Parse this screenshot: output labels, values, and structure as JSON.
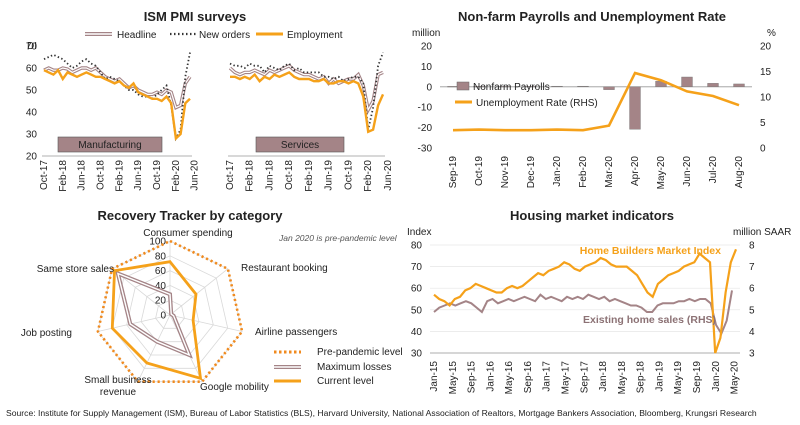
{
  "colors": {
    "orange": "#f5a11a",
    "brown": "#a48487",
    "black": "#333333",
    "grid": "#d9d9d9",
    "axis": "#999999"
  },
  "source": "Source: Institute for Supply Management (ISM), Bureau of Labor Statistics (BLS), Harvard University, National Association of Realtors, Mortgage Bankers Association, Bloomberg, Krungsri Research",
  "chart_data": [
    {
      "type": "line",
      "title": "ISM PMI surveys",
      "ylabel": "DI",
      "ylim": [
        20,
        70
      ],
      "y_ticks": [
        "70",
        "60",
        "50",
        "40",
        "30",
        "20"
      ],
      "legend": [
        "Headline",
        "New orders",
        "Employment"
      ],
      "legend_position": "top",
      "x_ticks": [
        "Oct-17",
        "Feb-18",
        "Jun-18",
        "Oct-18",
        "Feb-19",
        "Jun-19",
        "Oct-19",
        "Feb-20",
        "Jun-20"
      ],
      "panels": [
        {
          "name": "Manufacturing",
          "series": [
            {
              "name": "Headline",
              "values": [
                59,
                60,
                59,
                59,
                60,
                59.5,
                58,
                59,
                60,
                60,
                59,
                60,
                58,
                56,
                55,
                54,
                55,
                53,
                51,
                52,
                50,
                49,
                48,
                48,
                49,
                48,
                50,
                49,
                42,
                43,
                53,
                56
              ]
            },
            {
              "name": "New orders",
              "values": [
                64,
                65,
                66,
                65,
                64,
                62,
                60,
                61,
                63,
                64,
                62,
                61,
                58,
                55,
                56,
                55,
                54,
                52,
                50,
                50,
                48,
                47,
                47,
                46,
                48,
                50,
                52,
                43,
                28,
                32,
                56,
                67
              ]
            },
            {
              "name": "Employment",
              "values": [
                59,
                58,
                57,
                59,
                55,
                58,
                57,
                56,
                57,
                58,
                57,
                56,
                56,
                55,
                54,
                53,
                54,
                52,
                51,
                53,
                49,
                48,
                47,
                46,
                46,
                45,
                47,
                44,
                28,
                30,
                44,
                46
              ]
            }
          ]
        },
        {
          "name": "Services",
          "series": [
            {
              "name": "Headline",
              "values": [
                60,
                58,
                57,
                58,
                58,
                59,
                58,
                57,
                59,
                58,
                59,
                60,
                61,
                59,
                58,
                57,
                57,
                56,
                55,
                56,
                53,
                55,
                53,
                54,
                55,
                55,
                57,
                52,
                41,
                45,
                57,
                58
              ]
            },
            {
              "name": "New orders",
              "values": [
                62,
                61,
                61,
                60,
                62,
                61,
                61,
                58,
                61,
                60,
                59,
                61,
                62,
                59,
                60,
                58,
                58,
                58,
                58,
                56,
                56,
                55,
                56,
                54,
                55,
                56,
                56,
                53,
                32,
                42,
                61,
                67
              ]
            },
            {
              "name": "Employment",
              "values": [
                56,
                56,
                55,
                56,
                55,
                57,
                54,
                56,
                55,
                57,
                56,
                57,
                58,
                56,
                55,
                55,
                55,
                54,
                54,
                55,
                53,
                53,
                54,
                54,
                53,
                54,
                53,
                47,
                31,
                32,
                43,
                48
              ]
            }
          ]
        }
      ]
    },
    {
      "type": "bar",
      "title": "Non-farm Payrolls and Unemployment Rate",
      "ylabel": "million",
      "ylabel_right": "%",
      "ylim": [
        -30,
        20
      ],
      "ylim_right": [
        0,
        20
      ],
      "y_ticks": [
        "20",
        "10",
        "0",
        "-10",
        "-20",
        "-30"
      ],
      "y_ticks_right": [
        "20",
        "15",
        "10",
        "5",
        "0"
      ],
      "categories": [
        "Sep-19",
        "Oct-19",
        "Nov-19",
        "Dec-19",
        "Jan-20",
        "Feb-20",
        "Mar-20",
        "Apr-20",
        "May-20",
        "Jun-20",
        "Jul-20",
        "Aug-20"
      ],
      "series": [
        {
          "name": "Nonfarm Payrolls",
          "values": [
            0.2,
            0.2,
            0.2,
            0.2,
            0.3,
            0.3,
            -1.4,
            -20.8,
            2.7,
            4.8,
            1.7,
            1.4
          ]
        },
        {
          "name": "Unemployment Rate (RHS)",
          "values": [
            3.5,
            3.6,
            3.5,
            3.5,
            3.6,
            3.5,
            4.4,
            14.7,
            13.3,
            11.1,
            10.2,
            8.4
          ]
        }
      ]
    },
    {
      "type": "radar",
      "title": "Recovery Tracker by category",
      "annotation": "Jan 2020 is pre-pandemic level",
      "r_ticks": [
        "100",
        "80",
        "60",
        "40",
        "20",
        "0"
      ],
      "categories": [
        "Consumer spending",
        "Restaurant booking",
        "Airline passengers",
        "Google mobility",
        "Small business revenue",
        "Job posting",
        "Same store sales"
      ],
      "series": [
        {
          "name": "Pre-pandemic level",
          "values": [
            100,
            100,
            100,
            100,
            100,
            100,
            100
          ]
        },
        {
          "name": "Maximum losses",
          "values": [
            28,
            2,
            5,
            60,
            40,
            55,
            90
          ]
        },
        {
          "name": "Current level",
          "values": [
            72,
            45,
            32,
            95,
            72,
            80,
            96
          ]
        }
      ]
    },
    {
      "type": "line",
      "title": "Housing market indicators",
      "ylabel": "Index",
      "ylabel_right": "million SAAR",
      "ylim": [
        30,
        80
      ],
      "ylim_right": [
        3,
        8
      ],
      "y_ticks": [
        "80",
        "70",
        "60",
        "50",
        "40",
        "30"
      ],
      "y_ticks_right": [
        "8",
        "7",
        "6",
        "5",
        "4",
        "3"
      ],
      "x_ticks": [
        "Jan-15",
        "May-15",
        "Sep-15",
        "Jan-16",
        "May-16",
        "Sep-16",
        "Jan-17",
        "May-17",
        "Sep-17",
        "Jan-18",
        "May-18",
        "Sep-18",
        "Jan-19",
        "May-19",
        "Sep-19",
        "Jan-20",
        "May-20"
      ],
      "series": [
        {
          "name": "Home Builders Market Index",
          "values": [
            57,
            55,
            54,
            52,
            55,
            56,
            59,
            60,
            62,
            61,
            60,
            59,
            58,
            58,
            60,
            61,
            60,
            61,
            63,
            65,
            67,
            66,
            68,
            69,
            70,
            72,
            71,
            69,
            68,
            70,
            71,
            72,
            74,
            73,
            71,
            70,
            70,
            70,
            68,
            66,
            62,
            58,
            56,
            62,
            64,
            66,
            67,
            68,
            70,
            71,
            72,
            76,
            74,
            72,
            30,
            37,
            58,
            72,
            78
          ]
        },
        {
          "name": "Existing home sales (RHS)",
          "values": [
            4.9,
            5.1,
            5.2,
            5.3,
            5.2,
            5.3,
            5.4,
            5.3,
            5.1,
            4.9,
            5.4,
            5.5,
            5.3,
            5.4,
            5.5,
            5.4,
            5.5,
            5.6,
            5.5,
            5.4,
            5.7,
            5.5,
            5.6,
            5.5,
            5.4,
            5.6,
            5.5,
            5.6,
            5.5,
            5.7,
            5.6,
            5.5,
            5.6,
            5.4,
            5.5,
            5.4,
            5.3,
            5.2,
            5.2,
            5.1,
            4.9,
            4.9,
            5.2,
            5.3,
            5.3,
            5.3,
            5.4,
            5.4,
            5.5,
            5.4,
            5.5,
            5.5,
            5.3,
            4.3,
            3.9,
            4.5,
            5.9
          ]
        }
      ]
    }
  ]
}
